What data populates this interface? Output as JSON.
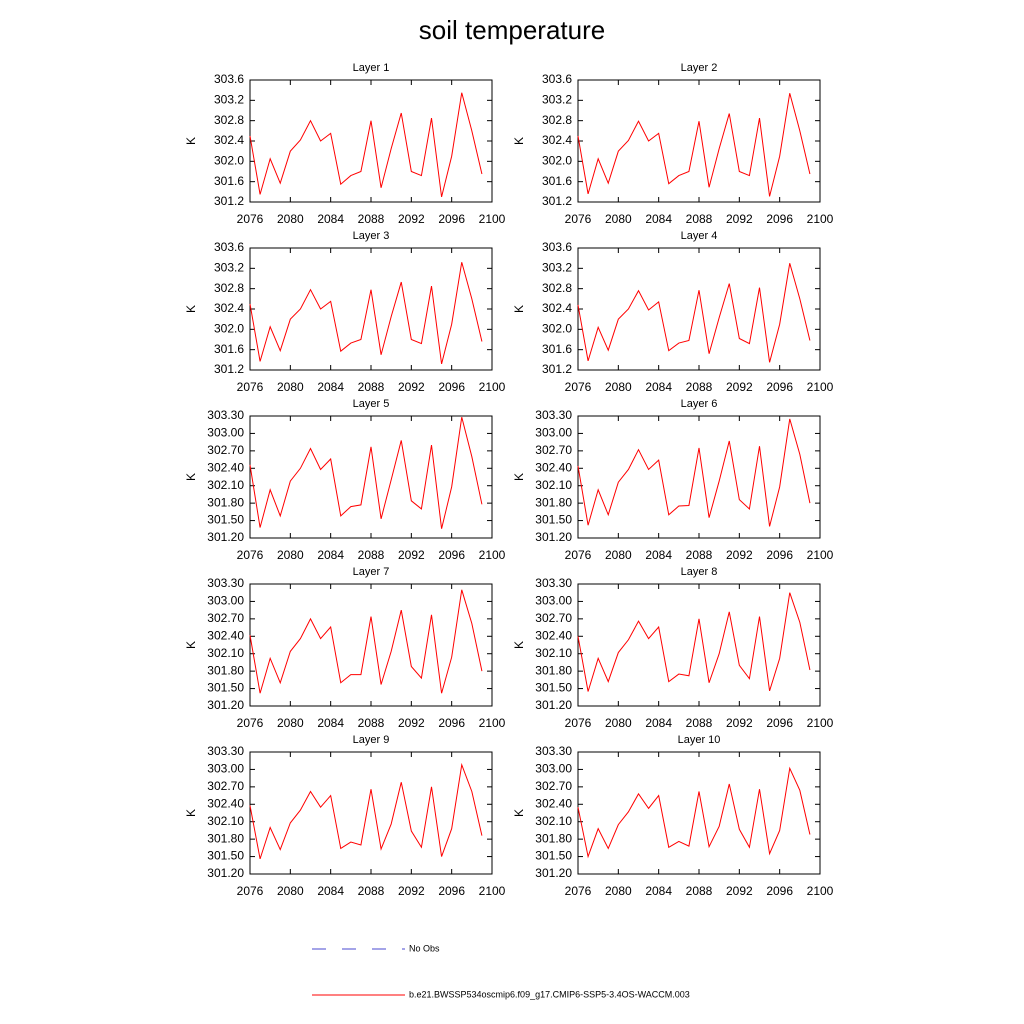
{
  "title": "soil temperature",
  "legend": [
    {
      "name": "No Obs",
      "color": "#4a4ad0",
      "dash": true
    },
    {
      "name": "b.e21.BWSSP534oscmip6.f09_g17.CMIP6-SSP5-3.4OS-WACCM.003",
      "color": "#ff0000",
      "dash": false
    }
  ],
  "chart_data": [
    {
      "type": "line",
      "title": "Layer 1",
      "ylabel": "K",
      "x": [
        2076,
        2077,
        2078,
        2079,
        2080,
        2081,
        2082,
        2083,
        2084,
        2085,
        2086,
        2087,
        2088,
        2089,
        2090,
        2091,
        2092,
        2093,
        2094,
        2095,
        2096,
        2097,
        2098,
        2099
      ],
      "series": [
        {
          "color": "#ff0000",
          "values": [
            302.5,
            301.35,
            302.05,
            301.57,
            302.2,
            302.42,
            302.8,
            302.4,
            302.55,
            301.55,
            301.72,
            301.8,
            302.8,
            301.48,
            302.25,
            302.95,
            301.8,
            301.72,
            302.85,
            301.3,
            302.1,
            303.35,
            302.6,
            301.75
          ]
        }
      ],
      "xlim": [
        2076,
        2100
      ],
      "xticks": [
        2076,
        2080,
        2084,
        2088,
        2092,
        2096,
        2100
      ],
      "ylim": [
        301.2,
        303.6
      ],
      "yticks": [
        301.2,
        301.6,
        {
          "value": 302,
          "label": "302.0"
        },
        302.4,
        302.8,
        303.2,
        303.6
      ]
    },
    {
      "type": "line",
      "title": "Layer 2",
      "ylabel": "K",
      "x": [
        2076,
        2077,
        2078,
        2079,
        2080,
        2081,
        2082,
        2083,
        2084,
        2085,
        2086,
        2087,
        2088,
        2089,
        2090,
        2091,
        2092,
        2093,
        2094,
        2095,
        2096,
        2097,
        2098,
        2099
      ],
      "series": [
        {
          "color": "#ff0000",
          "values": [
            302.5,
            301.36,
            302.05,
            301.57,
            302.2,
            302.41,
            302.79,
            302.4,
            302.55,
            301.56,
            301.72,
            301.8,
            302.79,
            301.49,
            302.25,
            302.94,
            301.8,
            301.72,
            302.85,
            301.31,
            302.1,
            303.34,
            302.6,
            301.75
          ]
        }
      ],
      "xlim": [
        2076,
        2100
      ],
      "xticks": [
        2076,
        2080,
        2084,
        2088,
        2092,
        2096,
        2100
      ],
      "ylim": [
        301.2,
        303.6
      ],
      "yticks": [
        301.2,
        301.6,
        {
          "value": 302,
          "label": "302.0"
        },
        302.4,
        302.8,
        303.2,
        303.6
      ]
    },
    {
      "type": "line",
      "title": "Layer 3",
      "ylabel": "K",
      "x": [
        2076,
        2077,
        2078,
        2079,
        2080,
        2081,
        2082,
        2083,
        2084,
        2085,
        2086,
        2087,
        2088,
        2089,
        2090,
        2091,
        2092,
        2093,
        2094,
        2095,
        2096,
        2097,
        2098,
        2099
      ],
      "series": [
        {
          "color": "#ff0000",
          "values": [
            302.5,
            301.37,
            302.05,
            301.58,
            302.2,
            302.4,
            302.78,
            302.4,
            302.55,
            301.57,
            301.73,
            301.8,
            302.78,
            301.5,
            302.25,
            302.93,
            301.8,
            301.72,
            302.85,
            301.32,
            302.1,
            303.32,
            302.6,
            301.76
          ]
        }
      ],
      "xlim": [
        2076,
        2100
      ],
      "xticks": [
        2076,
        2080,
        2084,
        2088,
        2092,
        2096,
        2100
      ],
      "ylim": [
        301.2,
        303.6
      ],
      "yticks": [
        301.2,
        301.6,
        {
          "value": 302,
          "label": "302.0"
        },
        302.4,
        302.8,
        303.2,
        303.6
      ]
    },
    {
      "type": "line",
      "title": "Layer 4",
      "ylabel": "K",
      "x": [
        2076,
        2077,
        2078,
        2079,
        2080,
        2081,
        2082,
        2083,
        2084,
        2085,
        2086,
        2087,
        2088,
        2089,
        2090,
        2091,
        2092,
        2093,
        2094,
        2095,
        2096,
        2097,
        2098,
        2099
      ],
      "series": [
        {
          "color": "#ff0000",
          "values": [
            302.48,
            301.38,
            302.04,
            301.59,
            302.2,
            302.4,
            302.76,
            302.38,
            302.54,
            301.58,
            301.73,
            301.78,
            302.77,
            301.52,
            302.23,
            302.9,
            301.82,
            301.72,
            302.82,
            301.35,
            302.1,
            303.3,
            302.6,
            301.78
          ]
        }
      ],
      "xlim": [
        2076,
        2100
      ],
      "xticks": [
        2076,
        2080,
        2084,
        2088,
        2092,
        2096,
        2100
      ],
      "ylim": [
        301.2,
        303.6
      ],
      "yticks": [
        301.2,
        301.6,
        {
          "value": 302,
          "label": "302.0"
        },
        302.4,
        302.8,
        303.2,
        303.6
      ]
    },
    {
      "type": "line",
      "title": "Layer 5",
      "ylabel": "K",
      "x": [
        2076,
        2077,
        2078,
        2079,
        2080,
        2081,
        2082,
        2083,
        2084,
        2085,
        2086,
        2087,
        2088,
        2089,
        2090,
        2091,
        2092,
        2093,
        2094,
        2095,
        2096,
        2097,
        2098,
        2099
      ],
      "series": [
        {
          "color": "#ff0000",
          "values": [
            302.46,
            301.38,
            302.03,
            301.58,
            302.18,
            302.4,
            302.74,
            302.38,
            302.56,
            301.58,
            301.74,
            301.77,
            302.77,
            301.53,
            302.2,
            302.88,
            301.84,
            301.7,
            302.8,
            301.36,
            302.08,
            303.28,
            302.6,
            301.78
          ]
        }
      ],
      "xlim": [
        2076,
        2100
      ],
      "xticks": [
        2076,
        2080,
        2084,
        2088,
        2092,
        2096,
        2100
      ],
      "ylim": [
        301.2,
        303.3
      ],
      "yticks": [
        {
          "value": 301.2,
          "label": "301.20"
        },
        {
          "value": 301.5,
          "label": "301.50"
        },
        {
          "value": 301.8,
          "label": "301.80"
        },
        {
          "value": 302.1,
          "label": "302.10"
        },
        {
          "value": 302.4,
          "label": "302.40"
        },
        {
          "value": 302.7,
          "label": "302.70"
        },
        {
          "value": 303,
          "label": "303.00"
        },
        {
          "value": 303.3,
          "label": "303.30"
        }
      ]
    },
    {
      "type": "line",
      "title": "Layer 6",
      "ylabel": "K",
      "x": [
        2076,
        2077,
        2078,
        2079,
        2080,
        2081,
        2082,
        2083,
        2084,
        2085,
        2086,
        2087,
        2088,
        2089,
        2090,
        2091,
        2092,
        2093,
        2094,
        2095,
        2096,
        2097,
        2098,
        2099
      ],
      "series": [
        {
          "color": "#ff0000",
          "values": [
            302.44,
            301.42,
            302.03,
            301.6,
            302.16,
            302.38,
            302.72,
            302.38,
            302.54,
            301.6,
            301.75,
            301.76,
            302.75,
            301.55,
            302.18,
            302.87,
            301.86,
            301.7,
            302.78,
            301.4,
            302.08,
            303.25,
            302.64,
            301.8
          ]
        }
      ],
      "xlim": [
        2076,
        2100
      ],
      "xticks": [
        2076,
        2080,
        2084,
        2088,
        2092,
        2096,
        2100
      ],
      "ylim": [
        301.2,
        303.3
      ],
      "yticks": [
        {
          "value": 301.2,
          "label": "301.20"
        },
        {
          "value": 301.5,
          "label": "301.50"
        },
        {
          "value": 301.8,
          "label": "301.80"
        },
        {
          "value": 302.1,
          "label": "302.10"
        },
        {
          "value": 302.4,
          "label": "302.40"
        },
        {
          "value": 302.7,
          "label": "302.70"
        },
        {
          "value": 303,
          "label": "303.00"
        },
        {
          "value": 303.3,
          "label": "303.30"
        }
      ]
    },
    {
      "type": "line",
      "title": "Layer 7",
      "ylabel": "K",
      "x": [
        2076,
        2077,
        2078,
        2079,
        2080,
        2081,
        2082,
        2083,
        2084,
        2085,
        2086,
        2087,
        2088,
        2089,
        2090,
        2091,
        2092,
        2093,
        2094,
        2095,
        2096,
        2097,
        2098,
        2099
      ],
      "series": [
        {
          "color": "#ff0000",
          "values": [
            302.42,
            301.42,
            302.02,
            301.6,
            302.14,
            302.36,
            302.7,
            302.36,
            302.56,
            301.6,
            301.74,
            301.74,
            302.74,
            301.57,
            302.14,
            302.85,
            301.88,
            301.68,
            302.77,
            301.42,
            302.04,
            303.2,
            302.62,
            301.8
          ]
        }
      ],
      "xlim": [
        2076,
        2100
      ],
      "xticks": [
        2076,
        2080,
        2084,
        2088,
        2092,
        2096,
        2100
      ],
      "ylim": [
        301.2,
        303.3
      ],
      "yticks": [
        {
          "value": 301.2,
          "label": "301.20"
        },
        {
          "value": 301.5,
          "label": "301.50"
        },
        {
          "value": 301.8,
          "label": "301.80"
        },
        {
          "value": 302.1,
          "label": "302.10"
        },
        {
          "value": 302.4,
          "label": "302.40"
        },
        {
          "value": 302.7,
          "label": "302.70"
        },
        {
          "value": 303,
          "label": "303.00"
        },
        {
          "value": 303.3,
          "label": "303.30"
        }
      ]
    },
    {
      "type": "line",
      "title": "Layer 8",
      "ylabel": "K",
      "x": [
        2076,
        2077,
        2078,
        2079,
        2080,
        2081,
        2082,
        2083,
        2084,
        2085,
        2086,
        2087,
        2088,
        2089,
        2090,
        2091,
        2092,
        2093,
        2094,
        2095,
        2096,
        2097,
        2098,
        2099
      ],
      "series": [
        {
          "color": "#ff0000",
          "values": [
            302.4,
            301.45,
            302.02,
            301.62,
            302.12,
            302.34,
            302.66,
            302.36,
            302.56,
            301.62,
            301.75,
            301.72,
            302.7,
            301.6,
            302.1,
            302.82,
            301.9,
            301.67,
            302.74,
            301.46,
            302.02,
            303.15,
            302.64,
            301.82
          ]
        }
      ],
      "xlim": [
        2076,
        2100
      ],
      "xticks": [
        2076,
        2080,
        2084,
        2088,
        2092,
        2096,
        2100
      ],
      "ylim": [
        301.2,
        303.3
      ],
      "yticks": [
        {
          "value": 301.2,
          "label": "301.20"
        },
        {
          "value": 301.5,
          "label": "301.50"
        },
        {
          "value": 301.8,
          "label": "301.80"
        },
        {
          "value": 302.1,
          "label": "302.10"
        },
        {
          "value": 302.4,
          "label": "302.40"
        },
        {
          "value": 302.7,
          "label": "302.70"
        },
        {
          "value": 303,
          "label": "303.00"
        },
        {
          "value": 303.3,
          "label": "303.30"
        }
      ]
    },
    {
      "type": "line",
      "title": "Layer 9",
      "ylabel": "K",
      "x": [
        2076,
        2077,
        2078,
        2079,
        2080,
        2081,
        2082,
        2083,
        2084,
        2085,
        2086,
        2087,
        2088,
        2089,
        2090,
        2091,
        2092,
        2093,
        2094,
        2095,
        2096,
        2097,
        2098,
        2099
      ],
      "series": [
        {
          "color": "#ff0000",
          "values": [
            302.38,
            301.46,
            302.0,
            301.62,
            302.08,
            302.3,
            302.62,
            302.35,
            302.55,
            301.64,
            301.75,
            301.7,
            302.66,
            301.63,
            302.06,
            302.78,
            301.94,
            301.66,
            302.7,
            301.5,
            301.98,
            303.08,
            302.62,
            301.86
          ]
        }
      ],
      "xlim": [
        2076,
        2100
      ],
      "xticks": [
        2076,
        2080,
        2084,
        2088,
        2092,
        2096,
        2100
      ],
      "ylim": [
        301.2,
        303.3
      ],
      "yticks": [
        {
          "value": 301.2,
          "label": "301.20"
        },
        {
          "value": 301.5,
          "label": "301.50"
        },
        {
          "value": 301.8,
          "label": "301.80"
        },
        {
          "value": 302.1,
          "label": "302.10"
        },
        {
          "value": 302.4,
          "label": "302.40"
        },
        {
          "value": 302.7,
          "label": "302.70"
        },
        {
          "value": 303,
          "label": "303.00"
        },
        {
          "value": 303.3,
          "label": "303.30"
        }
      ]
    },
    {
      "type": "line",
      "title": "Layer 10",
      "ylabel": "K",
      "x": [
        2076,
        2077,
        2078,
        2079,
        2080,
        2081,
        2082,
        2083,
        2084,
        2085,
        2086,
        2087,
        2088,
        2089,
        2090,
        2091,
        2092,
        2093,
        2094,
        2095,
        2096,
        2097,
        2098,
        2099
      ],
      "series": [
        {
          "color": "#ff0000",
          "values": [
            302.35,
            301.5,
            301.98,
            301.64,
            302.05,
            302.27,
            302.58,
            302.33,
            302.55,
            301.66,
            301.76,
            301.68,
            302.62,
            301.67,
            302.02,
            302.75,
            301.97,
            301.66,
            302.66,
            301.55,
            301.95,
            303.02,
            302.64,
            301.88
          ]
        }
      ],
      "xlim": [
        2076,
        2100
      ],
      "xticks": [
        2076,
        2080,
        2084,
        2088,
        2092,
        2096,
        2100
      ],
      "ylim": [
        301.2,
        303.3
      ],
      "yticks": [
        {
          "value": 301.2,
          "label": "301.20"
        },
        {
          "value": 301.5,
          "label": "301.50"
        },
        {
          "value": 301.8,
          "label": "301.80"
        },
        {
          "value": 302.1,
          "label": "302.10"
        },
        {
          "value": 302.4,
          "label": "302.40"
        },
        {
          "value": 302.7,
          "label": "302.70"
        },
        {
          "value": 303,
          "label": "303.00"
        },
        {
          "value": 303.3,
          "label": "303.30"
        }
      ]
    }
  ]
}
